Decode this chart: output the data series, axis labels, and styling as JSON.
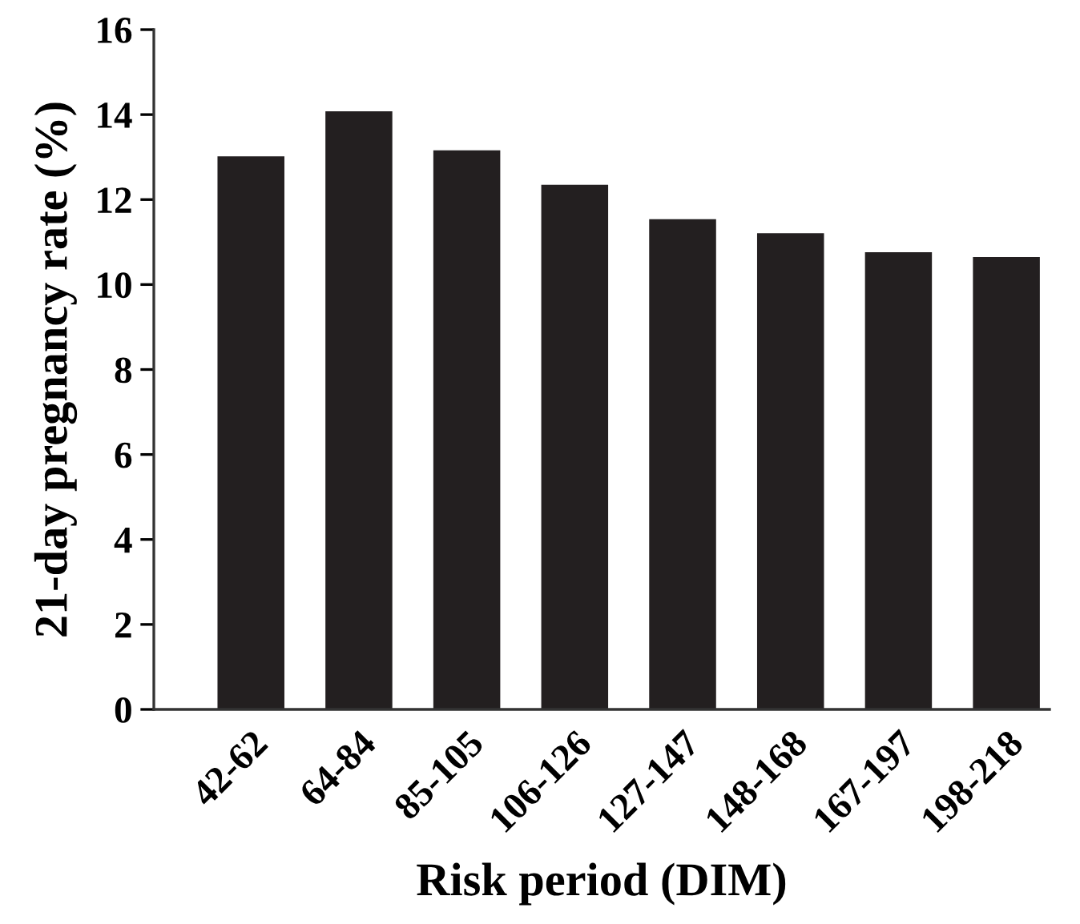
{
  "chart_data": {
    "type": "bar",
    "xlabel": "Risk period (DIM)",
    "ylabel": "21-day pregnancy rate (%)",
    "categories": [
      "42-62",
      "64-84",
      "85-105",
      "106-126",
      "127-147",
      "148-168",
      "167-197",
      "198-218"
    ],
    "values": [
      13.02,
      14.08,
      13.16,
      12.35,
      11.54,
      11.21,
      10.76,
      10.65
    ],
    "color": "#231f20",
    "ylim": [
      0,
      16
    ],
    "yticks": [
      0,
      2,
      4,
      6,
      8,
      10,
      12,
      14,
      16
    ],
    "grid": false
  }
}
